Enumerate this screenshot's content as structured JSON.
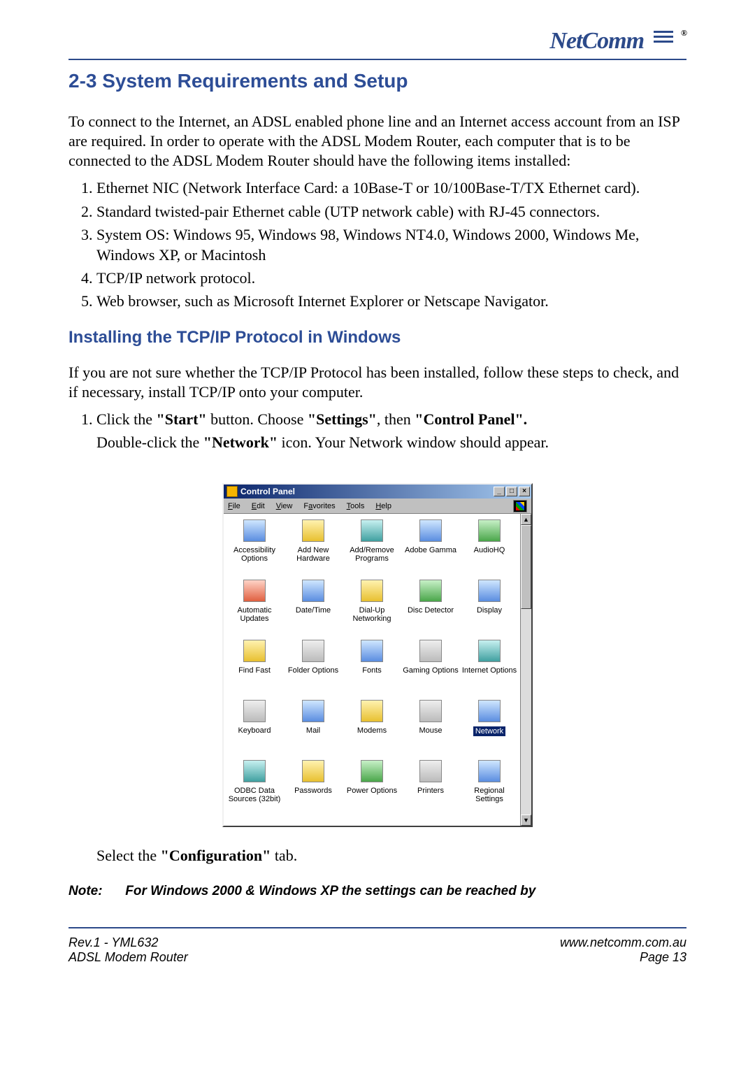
{
  "brand": {
    "name": "NetComm",
    "registered": "®"
  },
  "colors": {
    "accent": "#2c4a8a",
    "heading": "#2d4d96",
    "titlebar_start": "#0a246a",
    "titlebar_end": "#a6caf0",
    "window_face": "#c0c0c0",
    "selection_bg": "#0a246a",
    "selection_fg": "#ffffff"
  },
  "heading1": "2-3 System Requirements and Setup",
  "intro": "To connect to the Internet, an ADSL enabled phone line and an Internet access account from an ISP are required. In order to operate with the ADSL Modem Router, each computer that is to be connected to the ADSL Modem Router should have the following items installed:",
  "requirements": [
    "Ethernet NIC (Network Interface Card: a 10Base-T or 10/100Base-T/TX Ethernet card).",
    "Standard twisted-pair Ethernet cable (UTP network cable) with RJ-45 connectors.",
    "System OS: Windows 95, Windows 98, Windows NT4.0, Windows 2000, Windows Me, Windows XP, or Macintosh",
    "TCP/IP network protocol.",
    "Web browser, such as Microsoft Internet Explorer or Netscape Navigator."
  ],
  "heading2": "Installing the TCP/IP Protocol in Windows",
  "para2": "If you are not sure whether the TCP/IP Protocol has been installed, follow these steps to check, and if necessary, install TCP/IP onto your computer.",
  "step1_prefix": "Click the ",
  "step1_b1": "\"Start\"",
  "step1_mid1": " button. Choose ",
  "step1_b2": "\"Settings\"",
  "step1_mid2": ", then ",
  "step1_b3": "\"Control Panel\".",
  "step1_line2_a": "Double-click the ",
  "step1_line2_b": "\"Network\"",
  "step1_line2_c": " icon. Your Network window should appear.",
  "screenshot": {
    "window_title": "Control Panel",
    "menus": [
      {
        "underline": "F",
        "rest": "ile"
      },
      {
        "underline": "E",
        "rest": "dit"
      },
      {
        "underline": "V",
        "rest": "iew"
      },
      {
        "underline": "F",
        "rest": "avorites",
        "pre": ""
      },
      {
        "underline": "T",
        "rest": "ools"
      },
      {
        "underline": "H",
        "rest": "elp"
      }
    ],
    "buttons": {
      "min": "_",
      "max": "□",
      "close": "×"
    },
    "scroll": {
      "up": "▲",
      "down": "▼"
    },
    "selected": "Network",
    "items": [
      {
        "label": "Accessibility Options",
        "cls": "ic-blue"
      },
      {
        "label": "Add New Hardware",
        "cls": "ic-yellow"
      },
      {
        "label": "Add/Remove Programs",
        "cls": "ic-teal"
      },
      {
        "label": "Adobe Gamma",
        "cls": "ic-blue"
      },
      {
        "label": "AudioHQ",
        "cls": "ic-green"
      },
      {
        "label": "Automatic Updates",
        "cls": "ic-red"
      },
      {
        "label": "Date/Time",
        "cls": "ic-blue"
      },
      {
        "label": "Dial-Up Networking",
        "cls": "ic-yellow"
      },
      {
        "label": "Disc Detector",
        "cls": "ic-green"
      },
      {
        "label": "Display",
        "cls": "ic-blue"
      },
      {
        "label": "Find Fast",
        "cls": "ic-yellow"
      },
      {
        "label": "Folder Options",
        "cls": "ic-gray"
      },
      {
        "label": "Fonts",
        "cls": "ic-blue"
      },
      {
        "label": "Gaming Options",
        "cls": "ic-gray"
      },
      {
        "label": "Internet Options",
        "cls": "ic-teal"
      },
      {
        "label": "Keyboard",
        "cls": "ic-gray"
      },
      {
        "label": "Mail",
        "cls": "ic-blue"
      },
      {
        "label": "Modems",
        "cls": "ic-yellow"
      },
      {
        "label": "Mouse",
        "cls": "ic-gray"
      },
      {
        "label": "Network",
        "cls": "ic-blue"
      },
      {
        "label": "ODBC Data Sources (32bit)",
        "cls": "ic-teal"
      },
      {
        "label": "Passwords",
        "cls": "ic-yellow"
      },
      {
        "label": "Power Options",
        "cls": "ic-green"
      },
      {
        "label": "Printers",
        "cls": "ic-gray"
      },
      {
        "label": "Regional Settings",
        "cls": "ic-blue"
      }
    ]
  },
  "after_shot_a": "Select the ",
  "after_shot_b": "\"Configuration\"",
  "after_shot_c": " tab.",
  "note_label": "Note:",
  "note_text": "For Windows 2000 & Windows XP the settings can be reached by",
  "footer": {
    "left1": "Rev.1 - YML632",
    "left2": "ADSL Modem Router",
    "right1": "www.netcomm.com.au",
    "right2": "Page 13"
  }
}
